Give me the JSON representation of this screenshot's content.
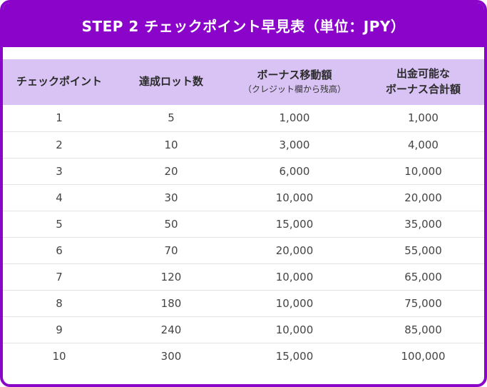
{
  "title": "STEP 2 チェックポイント早見表（単位：JPY）",
  "headers": {
    "checkpoint": "チェックポイント",
    "lots": "達成ロット数",
    "bonus_move_line1": "ボーナス移動額",
    "bonus_move_line2": "（クレジット欄から残高）",
    "withdrawable_line1": "出金可能な",
    "withdrawable_line2": "ボーナス合計額"
  },
  "rows": [
    {
      "checkpoint": "1",
      "lots": "5",
      "bonus_move": "1,000",
      "withdrawable_total": "1,000"
    },
    {
      "checkpoint": "2",
      "lots": "10",
      "bonus_move": "3,000",
      "withdrawable_total": "4,000"
    },
    {
      "checkpoint": "3",
      "lots": "20",
      "bonus_move": "6,000",
      "withdrawable_total": "10,000"
    },
    {
      "checkpoint": "4",
      "lots": "30",
      "bonus_move": "10,000",
      "withdrawable_total": "20,000"
    },
    {
      "checkpoint": "5",
      "lots": "50",
      "bonus_move": "15,000",
      "withdrawable_total": "35,000"
    },
    {
      "checkpoint": "6",
      "lots": "70",
      "bonus_move": "20,000",
      "withdrawable_total": "55,000"
    },
    {
      "checkpoint": "7",
      "lots": "120",
      "bonus_move": "10,000",
      "withdrawable_total": "65,000"
    },
    {
      "checkpoint": "8",
      "lots": "180",
      "bonus_move": "10,000",
      "withdrawable_total": "75,000"
    },
    {
      "checkpoint": "9",
      "lots": "240",
      "bonus_move": "10,000",
      "withdrawable_total": "85,000"
    },
    {
      "checkpoint": "10",
      "lots": "300",
      "bonus_move": "15,000",
      "withdrawable_total": "100,000"
    }
  ],
  "colors": {
    "accent": "#8a05c9",
    "header_bg": "#d8c3f4"
  }
}
